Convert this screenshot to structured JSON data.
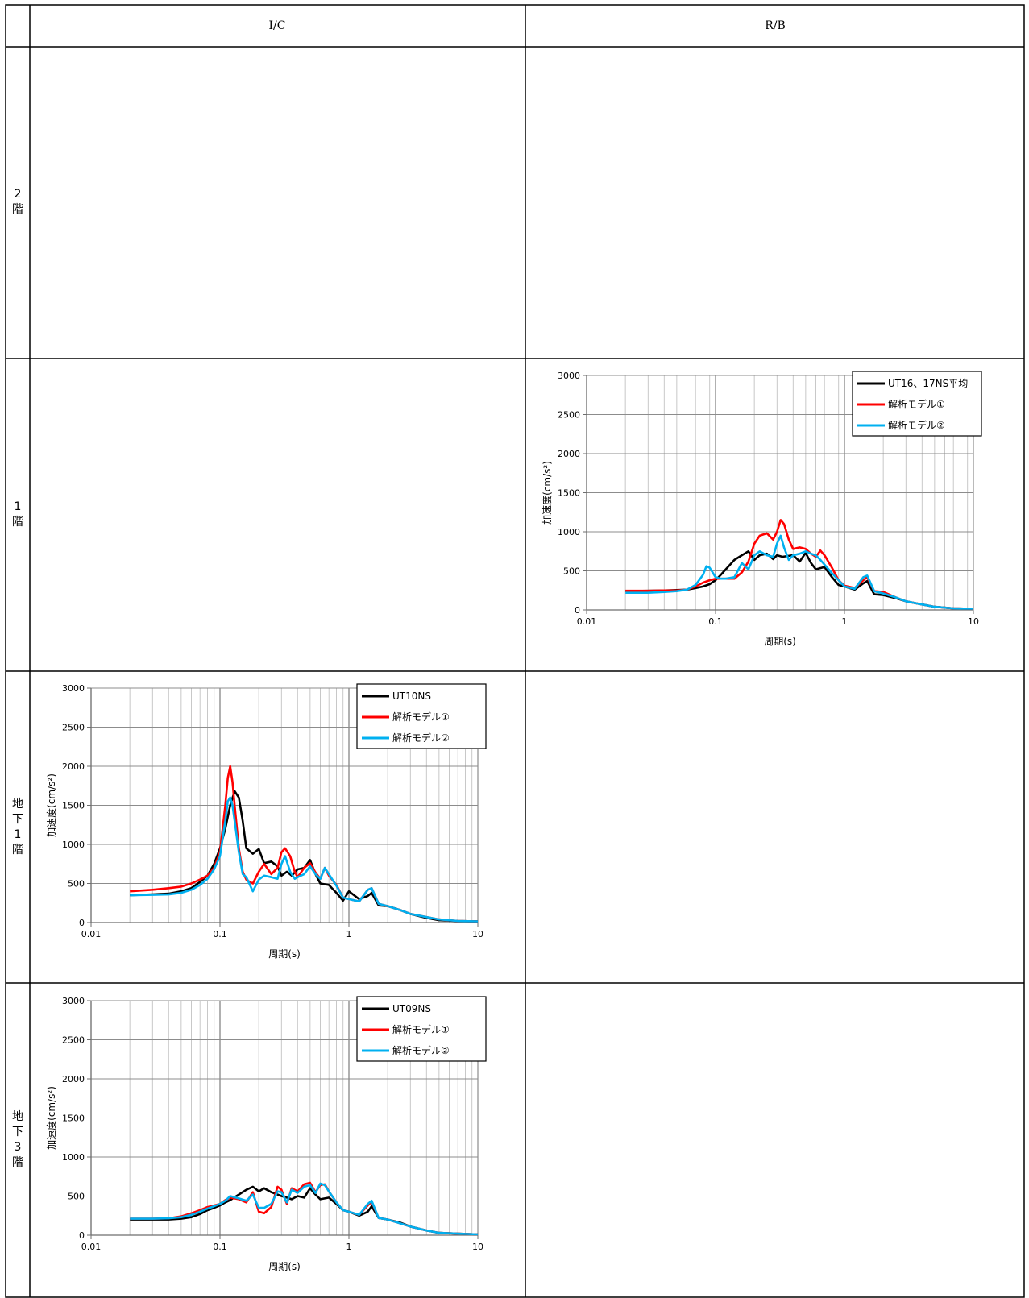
{
  "table": {
    "columns": [
      "I/C",
      "R/B"
    ],
    "rows": [
      {
        "label": [
          "2",
          "階"
        ]
      },
      {
        "label": [
          "1",
          "階"
        ]
      },
      {
        "label": [
          "地",
          "下",
          "1",
          "階"
        ]
      },
      {
        "label": [
          "地",
          "下",
          "3",
          "階"
        ]
      }
    ]
  },
  "chart_data": [
    {
      "panel": "R/B, 1階",
      "type": "line",
      "xscale": "log",
      "xlim": [
        0.01,
        10
      ],
      "ylim": [
        0,
        3000
      ],
      "xticks": [
        "0.01",
        "0.1",
        "1",
        "10"
      ],
      "yticks": [
        "0",
        "500",
        "1000",
        "1500",
        "2000",
        "2500",
        "3000"
      ],
      "xlabel": "周期(s)",
      "ylabel": "加速度(cm/s²)",
      "grid": true,
      "legend_position": "top-right",
      "series": [
        {
          "name": "UT16、17NS平均",
          "color": "#000000",
          "x": [
            0.02,
            0.03,
            0.04,
            0.05,
            0.06,
            0.07,
            0.08,
            0.09,
            0.1,
            0.11,
            0.12,
            0.14,
            0.16,
            0.18,
            0.2,
            0.22,
            0.25,
            0.28,
            0.3,
            0.33,
            0.36,
            0.4,
            0.45,
            0.5,
            0.55,
            0.6,
            0.7,
            0.8,
            0.9,
            1,
            1.2,
            1.4,
            1.5,
            1.7,
            2,
            2.5,
            3,
            4,
            5,
            7,
            10
          ],
          "y": [
            240,
            245,
            250,
            255,
            260,
            280,
            300,
            330,
            380,
            450,
            520,
            640,
            700,
            750,
            640,
            700,
            720,
            650,
            700,
            680,
            690,
            700,
            620,
            730,
            600,
            520,
            550,
            420,
            320,
            300,
            260,
            340,
            370,
            200,
            190,
            150,
            110,
            70,
            40,
            20,
            15
          ]
        },
        {
          "name": "解析モデル①",
          "color": "#ff0000",
          "x": [
            0.02,
            0.03,
            0.04,
            0.05,
            0.06,
            0.07,
            0.08,
            0.09,
            0.1,
            0.11,
            0.12,
            0.14,
            0.16,
            0.18,
            0.2,
            0.22,
            0.25,
            0.28,
            0.3,
            0.32,
            0.34,
            0.37,
            0.4,
            0.45,
            0.5,
            0.55,
            0.6,
            0.65,
            0.7,
            0.8,
            0.9,
            1,
            1.2,
            1.4,
            1.5,
            1.7,
            2,
            2.5,
            3,
            4,
            5,
            7,
            10
          ],
          "y": [
            245,
            245,
            250,
            250,
            260,
            300,
            350,
            380,
            400,
            400,
            400,
            400,
            480,
            620,
            850,
            950,
            980,
            900,
            1000,
            1150,
            1100,
            900,
            780,
            800,
            780,
            720,
            680,
            760,
            700,
            540,
            380,
            310,
            280,
            380,
            420,
            240,
            230,
            160,
            110,
            70,
            40,
            20,
            15
          ]
        },
        {
          "name": "解析モデル②",
          "color": "#00b0f0",
          "x": [
            0.02,
            0.03,
            0.04,
            0.05,
            0.06,
            0.07,
            0.08,
            0.085,
            0.09,
            0.1,
            0.11,
            0.12,
            0.14,
            0.16,
            0.18,
            0.2,
            0.22,
            0.25,
            0.28,
            0.3,
            0.32,
            0.34,
            0.37,
            0.4,
            0.45,
            0.5,
            0.55,
            0.6,
            0.65,
            0.7,
            0.8,
            0.9,
            1,
            1.2,
            1.4,
            1.5,
            1.7,
            2,
            2.5,
            3,
            4,
            5,
            7,
            10
          ],
          "y": [
            220,
            220,
            230,
            240,
            260,
            320,
            450,
            560,
            540,
            420,
            400,
            400,
            420,
            600,
            520,
            700,
            750,
            700,
            680,
            850,
            950,
            800,
            640,
            700,
            720,
            750,
            720,
            700,
            640,
            580,
            470,
            380,
            300,
            270,
            420,
            440,
            240,
            210,
            160,
            110,
            70,
            40,
            20,
            15
          ]
        }
      ]
    },
    {
      "panel": "I/C, 地下1階",
      "type": "line",
      "xscale": "log",
      "xlim": [
        0.01,
        10
      ],
      "ylim": [
        0,
        3000
      ],
      "xticks": [
        "0.01",
        "0.1",
        "1",
        "10"
      ],
      "yticks": [
        "0",
        "500",
        "1000",
        "1500",
        "2000",
        "2500",
        "3000"
      ],
      "xlabel": "周期(s)",
      "ylabel": "加速度(cm/s²)",
      "grid": true,
      "legend_position": "top-right",
      "series": [
        {
          "name": "UT10NS",
          "color": "#000000",
          "x": [
            0.02,
            0.03,
            0.04,
            0.05,
            0.06,
            0.07,
            0.08,
            0.09,
            0.1,
            0.11,
            0.12,
            0.13,
            0.14,
            0.15,
            0.16,
            0.18,
            0.2,
            0.22,
            0.25,
            0.28,
            0.3,
            0.33,
            0.36,
            0.4,
            0.45,
            0.5,
            0.55,
            0.6,
            0.7,
            0.8,
            0.9,
            1,
            1.2,
            1.4,
            1.5,
            1.7,
            2,
            2.5,
            3,
            4,
            5,
            7,
            10
          ],
          "y": [
            350,
            360,
            370,
            400,
            440,
            520,
            600,
            750,
            950,
            1200,
            1500,
            1680,
            1600,
            1300,
            950,
            880,
            940,
            760,
            780,
            720,
            600,
            650,
            600,
            680,
            700,
            800,
            620,
            500,
            480,
            380,
            280,
            400,
            300,
            340,
            380,
            220,
            210,
            160,
            110,
            60,
            30,
            20,
            15
          ]
        },
        {
          "name": "解析モデル①",
          "color": "#ff0000",
          "x": [
            0.02,
            0.03,
            0.04,
            0.05,
            0.06,
            0.07,
            0.08,
            0.09,
            0.1,
            0.11,
            0.115,
            0.12,
            0.125,
            0.13,
            0.14,
            0.15,
            0.16,
            0.17,
            0.18,
            0.2,
            0.22,
            0.25,
            0.28,
            0.3,
            0.32,
            0.35,
            0.38,
            0.4,
            0.45,
            0.5,
            0.55,
            0.6,
            0.65,
            0.7,
            0.8,
            0.9,
            1,
            1.2,
            1.4,
            1.5,
            1.7,
            2,
            2.5,
            3,
            4,
            5,
            7,
            10
          ],
          "y": [
            400,
            420,
            440,
            460,
            500,
            550,
            600,
            700,
            900,
            1500,
            1850,
            2000,
            1800,
            1500,
            950,
            650,
            550,
            520,
            500,
            650,
            750,
            620,
            700,
            900,
            950,
            850,
            650,
            580,
            700,
            760,
            640,
            560,
            700,
            600,
            480,
            320,
            300,
            270,
            420,
            440,
            240,
            210,
            160,
            110,
            70,
            40,
            20,
            15
          ]
        },
        {
          "name": "解析モデル②",
          "color": "#00b0f0",
          "x": [
            0.02,
            0.03,
            0.04,
            0.05,
            0.06,
            0.07,
            0.08,
            0.09,
            0.1,
            0.11,
            0.115,
            0.12,
            0.125,
            0.13,
            0.14,
            0.15,
            0.16,
            0.18,
            0.2,
            0.22,
            0.25,
            0.28,
            0.3,
            0.32,
            0.35,
            0.38,
            0.4,
            0.45,
            0.5,
            0.55,
            0.6,
            0.65,
            0.7,
            0.8,
            0.9,
            1,
            1.2,
            1.4,
            1.5,
            1.7,
            2,
            2.5,
            3,
            4,
            5,
            7,
            10
          ],
          "y": [
            350,
            355,
            360,
            380,
            420,
            480,
            560,
            680,
            850,
            1300,
            1550,
            1600,
            1500,
            1300,
            900,
            620,
            580,
            400,
            550,
            600,
            580,
            560,
            750,
            850,
            650,
            560,
            580,
            620,
            720,
            620,
            560,
            700,
            620,
            470,
            320,
            300,
            270,
            420,
            440,
            240,
            210,
            160,
            110,
            70,
            40,
            20,
            15
          ]
        }
      ]
    },
    {
      "panel": "I/C, 地下3階",
      "type": "line",
      "xscale": "log",
      "xlim": [
        0.01,
        10
      ],
      "ylim": [
        0,
        3000
      ],
      "xticks": [
        "0.01",
        "0.1",
        "1",
        "10"
      ],
      "yticks": [
        "0",
        "500",
        "1000",
        "1500",
        "2000",
        "2500",
        "3000"
      ],
      "xlabel": "周期(s)",
      "ylabel": "加速度(cm/s²)",
      "grid": true,
      "legend_position": "top-right",
      "series": [
        {
          "name": "UT09NS",
          "color": "#000000",
          "x": [
            0.02,
            0.03,
            0.04,
            0.05,
            0.06,
            0.07,
            0.08,
            0.09,
            0.1,
            0.11,
            0.12,
            0.14,
            0.16,
            0.18,
            0.2,
            0.22,
            0.25,
            0.28,
            0.3,
            0.33,
            0.36,
            0.4,
            0.45,
            0.5,
            0.55,
            0.6,
            0.7,
            0.8,
            0.9,
            1,
            1.2,
            1.4,
            1.5,
            1.7,
            2,
            2.5,
            3,
            4,
            5,
            7,
            10
          ],
          "y": [
            200,
            200,
            200,
            210,
            230,
            270,
            320,
            350,
            380,
            420,
            450,
            520,
            580,
            620,
            560,
            600,
            550,
            520,
            500,
            480,
            460,
            500,
            480,
            600,
            520,
            460,
            480,
            400,
            320,
            300,
            250,
            300,
            370,
            220,
            200,
            160,
            110,
            60,
            30,
            20,
            10
          ]
        },
        {
          "name": "解析モデル①",
          "color": "#ff0000",
          "x": [
            0.02,
            0.03,
            0.04,
            0.05,
            0.06,
            0.07,
            0.08,
            0.09,
            0.1,
            0.11,
            0.12,
            0.14,
            0.16,
            0.18,
            0.2,
            0.22,
            0.25,
            0.28,
            0.3,
            0.33,
            0.36,
            0.4,
            0.45,
            0.5,
            0.55,
            0.6,
            0.65,
            0.7,
            0.8,
            0.9,
            1,
            1.2,
            1.4,
            1.5,
            1.7,
            2,
            2.5,
            3,
            4,
            5,
            7,
            10
          ],
          "y": [
            210,
            210,
            215,
            240,
            280,
            320,
            360,
            380,
            400,
            450,
            480,
            460,
            420,
            550,
            300,
            280,
            360,
            620,
            580,
            400,
            600,
            560,
            650,
            670,
            550,
            640,
            650,
            560,
            420,
            320,
            300,
            260,
            380,
            430,
            220,
            200,
            150,
            110,
            60,
            30,
            20,
            10
          ]
        },
        {
          "name": "解析モデル②",
          "color": "#00b0f0",
          "x": [
            0.02,
            0.03,
            0.04,
            0.05,
            0.06,
            0.07,
            0.08,
            0.09,
            0.1,
            0.11,
            0.12,
            0.14,
            0.16,
            0.18,
            0.2,
            0.22,
            0.25,
            0.28,
            0.3,
            0.33,
            0.36,
            0.4,
            0.45,
            0.5,
            0.55,
            0.6,
            0.65,
            0.7,
            0.8,
            0.9,
            1,
            1.2,
            1.4,
            1.5,
            1.7,
            2,
            2.5,
            3,
            4,
            5,
            7,
            10
          ],
          "y": [
            210,
            210,
            215,
            230,
            260,
            300,
            340,
            370,
            400,
            440,
            500,
            470,
            440,
            520,
            350,
            350,
            400,
            560,
            550,
            420,
            580,
            540,
            620,
            640,
            540,
            660,
            640,
            560,
            420,
            320,
            300,
            260,
            400,
            440,
            220,
            200,
            150,
            110,
            60,
            30,
            20,
            10
          ]
        }
      ]
    }
  ]
}
